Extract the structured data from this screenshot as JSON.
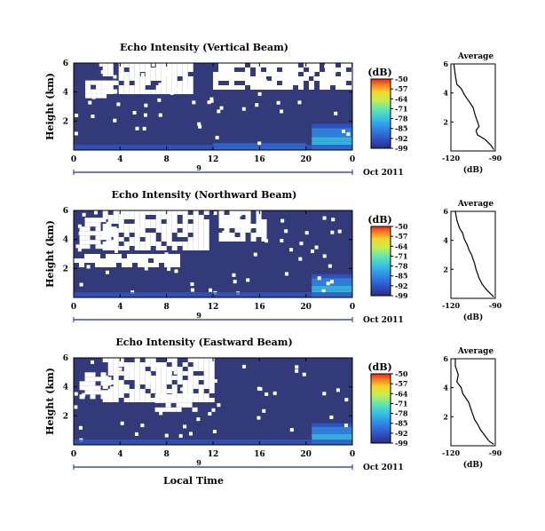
{
  "chart_data": [
    {
      "type": "heatmap",
      "title": "Echo Intensity (Vertical Beam)",
      "ylabel": "Height (km)",
      "xlabel": "",
      "xticks": [
        "0",
        "4",
        "8",
        "12",
        "16",
        "20",
        "0"
      ],
      "yticks": [
        "6",
        "4",
        "2"
      ],
      "xlim": [
        0,
        24
      ],
      "ylim": [
        0,
        6
      ],
      "date_label": "Oct 2011",
      "day_label": "9",
      "colorbar": {
        "label": "(dB)",
        "ticks": [
          "-50",
          "-57",
          "-64",
          "-71",
          "-78",
          "-85",
          "-92",
          "-99"
        ],
        "range": [
          -99,
          -50
        ]
      },
      "regions": [
        {
          "description": "no-echo (white)",
          "x": [
            1,
            3.5
          ],
          "y": [
            3.6,
            4.8
          ]
        },
        {
          "description": "no-echo (white)",
          "x": [
            2.5,
            10
          ],
          "y": [
            4.0,
            6.0
          ]
        },
        {
          "description": "no-echo (white)",
          "x": [
            12,
            24
          ],
          "y": [
            4.2,
            6.0
          ]
        },
        {
          "description": "moderate echo",
          "x": [
            20.5,
            24
          ],
          "y": [
            0,
            1.8
          ],
          "value_db": -78
        },
        {
          "description": "surface echo",
          "x": [
            12,
            20
          ],
          "y": [
            0,
            0.5
          ],
          "value_db": -85
        }
      ],
      "background_db": -96,
      "profile": {
        "title": "Average",
        "xlabel": "(dB)",
        "xticks": [
          "-120",
          "-90"
        ],
        "yticks": [
          "6",
          "4",
          "2"
        ],
        "xlim": [
          -120,
          -90
        ],
        "ylim": [
          0,
          6
        ],
        "x": [
          -118,
          -117,
          -116,
          -113,
          -111,
          -109,
          -107,
          -105,
          -104,
          -103,
          -102,
          -101,
          -103,
          -102,
          -97,
          -93,
          -91
        ],
        "y": [
          6.0,
          5.2,
          4.6,
          4.3,
          3.9,
          3.6,
          3.3,
          3.0,
          2.6,
          2.3,
          2.0,
          1.7,
          1.4,
          1.1,
          0.8,
          0.4,
          0.1
        ]
      }
    },
    {
      "type": "heatmap",
      "title": "Echo Intensity (Northward Beam)",
      "ylabel": "Height (km)",
      "xlabel": "",
      "xticks": [
        "0",
        "4",
        "8",
        "12",
        "16",
        "20",
        "0"
      ],
      "yticks": [
        "6",
        "4",
        "2"
      ],
      "xlim": [
        0,
        24
      ],
      "ylim": [
        0,
        6
      ],
      "date_label": "Oct 2011",
      "day_label": "9",
      "colorbar": {
        "label": "(dB)",
        "ticks": [
          "-50",
          "-57",
          "-64",
          "-71",
          "-78",
          "-85",
          "-92",
          "-99"
        ],
        "range": [
          -99,
          -50
        ]
      },
      "regions": [
        {
          "description": "no-echo (white)",
          "x": [
            0.5,
            3.5
          ],
          "y": [
            3.5,
            5.5
          ]
        },
        {
          "description": "no-echo (white)",
          "x": [
            2.5,
            11.5
          ],
          "y": [
            3.5,
            6.0
          ]
        },
        {
          "description": "no-echo (white)",
          "x": [
            12.5,
            16.5
          ],
          "y": [
            4.0,
            6.0
          ]
        },
        {
          "description": "no-echo (white)",
          "x": [
            0,
            9
          ],
          "y": [
            2.2,
            3.0
          ]
        },
        {
          "description": "moderate echo",
          "x": [
            20.5,
            24
          ],
          "y": [
            0,
            1.6
          ],
          "value_db": -78
        }
      ],
      "background_db": -96,
      "profile": {
        "title": "Average",
        "xlabel": "(dB)",
        "xticks": [
          "-120",
          "-90"
        ],
        "yticks": [
          "6",
          "4",
          "2"
        ],
        "xlim": [
          -120,
          -90
        ],
        "ylim": [
          0,
          6
        ],
        "x": [
          -117,
          -116,
          -114,
          -112,
          -111,
          -109,
          -108,
          -106,
          -105,
          -104,
          -103,
          -102,
          -101,
          -99,
          -96,
          -93,
          -91
        ],
        "y": [
          6.0,
          5.4,
          4.8,
          4.5,
          4.1,
          3.7,
          3.4,
          3.0,
          2.7,
          2.4,
          2.0,
          1.7,
          1.4,
          1.0,
          0.6,
          0.3,
          0.1
        ]
      }
    },
    {
      "type": "heatmap",
      "title": "Echo Intensity (Eastward Beam)",
      "ylabel": "Height (km)",
      "xlabel": "Local Time",
      "xticks": [
        "0",
        "4",
        "8",
        "12",
        "16",
        "20",
        "0"
      ],
      "yticks": [
        "6",
        "4",
        "2"
      ],
      "xlim": [
        0,
        24
      ],
      "ylim": [
        0,
        6
      ],
      "date_label": "Oct 2011",
      "day_label": "9",
      "colorbar": {
        "label": "(dB)",
        "ticks": [
          "-50",
          "-57",
          "-64",
          "-71",
          "-78",
          "-85",
          "-92",
          "-99"
        ],
        "range": [
          -99,
          -50
        ]
      },
      "regions": [
        {
          "description": "no-echo (white)",
          "x": [
            0.5,
            3
          ],
          "y": [
            3.4,
            5.0
          ]
        },
        {
          "description": "no-echo (white)",
          "x": [
            2.5,
            12
          ],
          "y": [
            3.2,
            6.0
          ]
        },
        {
          "description": "no-echo (white)",
          "x": [
            7,
            10.5
          ],
          "y": [
            2.5,
            3.5
          ]
        },
        {
          "description": "moderate echo",
          "x": [
            20.5,
            24
          ],
          "y": [
            0,
            1.5
          ],
          "value_db": -80
        }
      ],
      "background_db": -96,
      "profile": {
        "title": "Average",
        "xlabel": "(dB)",
        "xticks": [
          "-120",
          "-90"
        ],
        "yticks": [
          "6",
          "4",
          "2"
        ],
        "xlim": [
          -120,
          -90
        ],
        "ylim": [
          0,
          6
        ],
        "x": [
          -117,
          -117,
          -115,
          -116,
          -113,
          -112,
          -110,
          -108,
          -107,
          -106,
          -105,
          -104,
          -102,
          -100,
          -97,
          -94,
          -91
        ],
        "y": [
          6.0,
          5.5,
          4.9,
          4.4,
          4.0,
          3.6,
          3.3,
          3.0,
          2.7,
          2.4,
          2.1,
          1.8,
          1.5,
          1.1,
          0.7,
          0.3,
          0.1
        ]
      }
    }
  ],
  "colors": {
    "background_fill": "#323a7a",
    "no_echo": "#ffffff",
    "colormap": [
      "#2a2d86",
      "#2f54c8",
      "#2f86e6",
      "#35bde6",
      "#5fe6b3",
      "#c9ef4a",
      "#f7d22a",
      "#f57b1f",
      "#e8281c"
    ]
  }
}
